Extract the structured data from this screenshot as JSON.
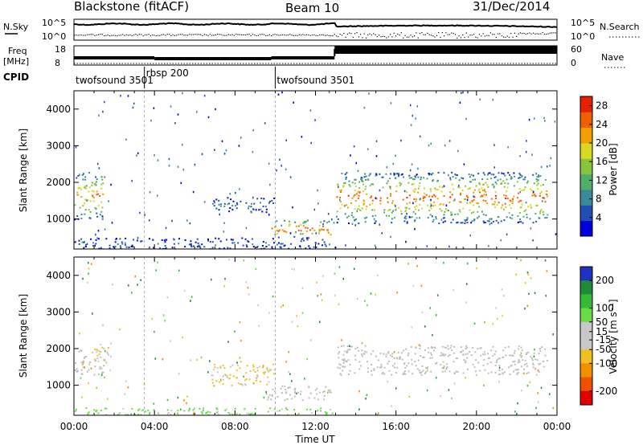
{
  "header": {
    "station": "Blackstone (fitACF)",
    "beam": "Beam 10",
    "date": "31/Dec/2014"
  },
  "noise_panel": {
    "left_label": "N.Sky",
    "right_label": "N.Search",
    "left_ticks": [
      "10^5",
      "10^0"
    ],
    "right_ticks": [
      "10^5",
      "10^0"
    ]
  },
  "freq_panel": {
    "left_label_line1": "Freq",
    "left_label_line2": "[MHz]",
    "right_label": "Nave",
    "left_ticks": [
      "18",
      "8"
    ],
    "right_ticks": [
      "60",
      "0"
    ]
  },
  "cpid_panel": {
    "label": "CPID",
    "segments": [
      {
        "name": "twofsound 3501",
        "start_hour": 0.0,
        "end_hour": 3.5
      },
      {
        "name": "rbsp 200",
        "start_hour": 3.5,
        "end_hour": 10.0
      },
      {
        "name": "twofsound 3501",
        "start_hour": 10.0,
        "end_hour": 24.0
      }
    ]
  },
  "colors": {
    "power_scale": [
      "#0000dd",
      "#1f4fb3",
      "#3a8a9a",
      "#4fae6a",
      "#88c43a",
      "#d8d820",
      "#f0a000",
      "#f06000",
      "#e62000"
    ],
    "velocity_scale": [
      "#2030c0",
      "#1f8a3a",
      "#33bb33",
      "#66dd44",
      "#c8c8c8",
      "#c8c8c8",
      "#f0c020",
      "#f09000",
      "#f05000",
      "#e00000"
    ],
    "ground_scatter": "#bdbdbd"
  },
  "chart_data": [
    {
      "type": "heatmap",
      "title": "",
      "xlabel": "Time UT",
      "ylabel": "Slant Range [km]",
      "xlim": [
        0,
        24
      ],
      "ylim": [
        180,
        4500
      ],
      "x_ticks": [
        "00:00",
        "04:00",
        "08:00",
        "12:00",
        "16:00",
        "20:00",
        "00:00"
      ],
      "y_ticks": [
        1000,
        2000,
        3000,
        4000
      ],
      "colorbar": {
        "label": "Power [dB]",
        "ticks": [
          4,
          8,
          12,
          16,
          20,
          24,
          28
        ],
        "range": [
          0,
          30
        ]
      },
      "regions": [
        {
          "t_start": 0.0,
          "t_end": 1.5,
          "range_low": 1000,
          "range_high": 2300,
          "peak_power": 24
        },
        {
          "t_start": 6.8,
          "t_end": 10.0,
          "range_low": 1200,
          "range_high": 1600,
          "peak_power": 8
        },
        {
          "t_start": 9.8,
          "t_end": 12.8,
          "range_low": 500,
          "range_high": 1000,
          "peak_power": 28
        },
        {
          "t_start": 13.0,
          "t_end": 23.5,
          "range_low": 900,
          "range_high": 2300,
          "peak_power": 26
        },
        {
          "t_start": 0.0,
          "t_end": 13.0,
          "range_low": 180,
          "range_high": 500,
          "peak_power": 6
        }
      ]
    },
    {
      "type": "heatmap",
      "title": "",
      "xlabel": "Time UT",
      "ylabel": "Slant Range [km]",
      "xlim": [
        0,
        24
      ],
      "ylim": [
        180,
        4500
      ],
      "x_ticks": [
        "00:00",
        "04:00",
        "08:00",
        "12:00",
        "16:00",
        "20:00",
        "00:00"
      ],
      "y_ticks": [
        1000,
        2000,
        3000,
        4000
      ],
      "colorbar": {
        "label": "Velocity [m s⁻¹]",
        "ticks": [
          200,
          100,
          50,
          15,
          -15,
          -50,
          -100,
          -200
        ],
        "range": [
          -250,
          250
        ]
      },
      "regions": [
        {
          "t_start": 0.0,
          "t_end": 1.5,
          "range_low": 1300,
          "range_high": 2000,
          "velocity": "ground scatter"
        },
        {
          "t_start": 1.0,
          "t_end": 1.8,
          "range_low": 1600,
          "range_high": 2200,
          "velocity": -50
        },
        {
          "t_start": 6.8,
          "t_end": 10.0,
          "range_low": 1000,
          "range_high": 1600,
          "velocity": -50
        },
        {
          "t_start": 9.5,
          "t_end": 12.8,
          "range_low": 600,
          "range_high": 1000,
          "velocity": "ground scatter"
        },
        {
          "t_start": 13.0,
          "t_end": 23.5,
          "range_low": 1300,
          "range_high": 2100,
          "velocity": "ground scatter"
        },
        {
          "t_start": 0.0,
          "t_end": 13.0,
          "range_low": 180,
          "range_high": 400,
          "velocity": 30
        }
      ]
    }
  ]
}
